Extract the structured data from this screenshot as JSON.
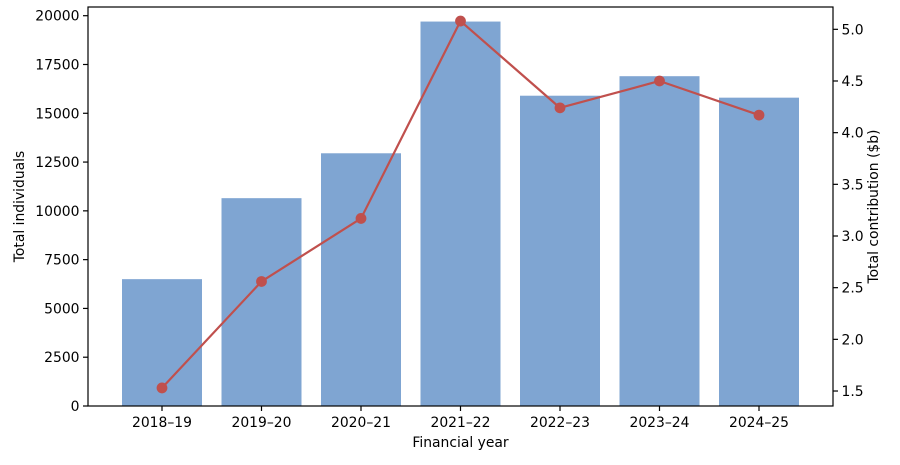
{
  "chart_data": {
    "type": "bar+line",
    "title": "",
    "xlabel": "Financial year",
    "categories": [
      "2018–19",
      "2019–20",
      "2020–21",
      "2021–22",
      "2022–23",
      "2023–24",
      "2024–25"
    ],
    "series": [
      {
        "name": "Total individuals",
        "type": "bar",
        "axis": "left",
        "color": "#7fa5d2",
        "values": [
          6500,
          10650,
          12950,
          19700,
          15900,
          16900,
          15800
        ]
      },
      {
        "name": "Total contribution ($b)",
        "type": "line",
        "axis": "right",
        "color": "#c0504d",
        "values": [
          1.53,
          2.56,
          3.17,
          5.08,
          4.24,
          4.5,
          4.17
        ]
      }
    ],
    "left_axis": {
      "label": "Total individuals",
      "min": 0,
      "max": 20446,
      "ticks": [
        0,
        2500,
        5000,
        7500,
        10000,
        12500,
        15000,
        17500,
        20000
      ]
    },
    "right_axis": {
      "label": "Total contribution ($b)",
      "min": 1.355,
      "max": 5.216,
      "ticks": [
        1.5,
        2.0,
        2.5,
        3.0,
        3.5,
        4.0,
        4.5,
        5.0
      ]
    },
    "grid": false,
    "legend": "none"
  }
}
